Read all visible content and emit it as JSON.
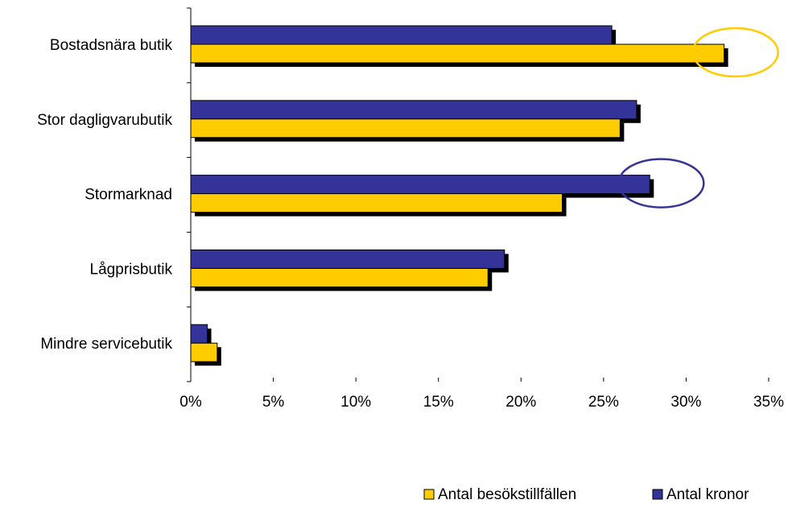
{
  "chart_data": {
    "type": "bar",
    "orientation": "horizontal",
    "categories": [
      "Bostadsnära butik",
      "Stor dagligvarubutik",
      "Stormarknad",
      "Lågprisbutik",
      "Mindre servicebutik"
    ],
    "series": [
      {
        "name": "Antal kronor",
        "color": "#333399",
        "values": [
          25.5,
          27.0,
          27.8,
          19.0,
          1.0
        ]
      },
      {
        "name": "Antal besökstillfällen",
        "color": "#FFCC00",
        "values": [
          32.3,
          26.0,
          22.5,
          18.0,
          1.6
        ]
      }
    ],
    "xlim": [
      0,
      35
    ],
    "xticks": [
      "0%",
      "5%",
      "10%",
      "15%",
      "20%",
      "25%",
      "30%",
      "35%"
    ],
    "legend_position": "bottom-right",
    "annotations": [
      {
        "type": "ellipse",
        "category": "Bostadsnära butik",
        "color": "#FFCC00"
      },
      {
        "type": "ellipse",
        "category": "Stormarknad",
        "color": "#333399"
      }
    ]
  }
}
